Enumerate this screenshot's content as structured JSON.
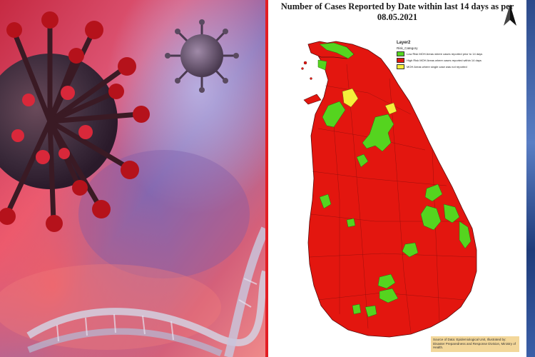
{
  "map": {
    "title_line1": "Number of Cases Reported by Date  within last 14 days as per",
    "title_line2": "08.05.2021",
    "layer_title": "Layer2",
    "field_name": "Risk_Category",
    "legend": [
      {
        "label": "Low Risk MOH Areas where cases reported prior to 14 days",
        "color": "#55d41f"
      },
      {
        "label": "High Risk MOH Areas where cases reported within 14 days",
        "color": "#e3160f"
      },
      {
        "label": "MOH Areas where single case was not reported",
        "color": "#f5ef3a"
      }
    ],
    "source_text": "Source of Data: Epidemiological Unit, Illustrated by: Disaster Preparedness and Response Division, Ministry of Health.",
    "colors": {
      "high_risk": "#e3160f",
      "low_risk": "#55d41f",
      "no_case": "#f5ef3a",
      "border": "#5a0a0a"
    }
  },
  "left_image": {
    "description_icon": "virus-icon",
    "colors": {
      "virus_body": "#b5121b",
      "virus_spike": "#8a0f16",
      "background_red": "#e0435a",
      "background_blue": "#5b5fa8",
      "small_virus": "#6b5a6e"
    }
  },
  "divider": {
    "color": "#e31e24"
  }
}
